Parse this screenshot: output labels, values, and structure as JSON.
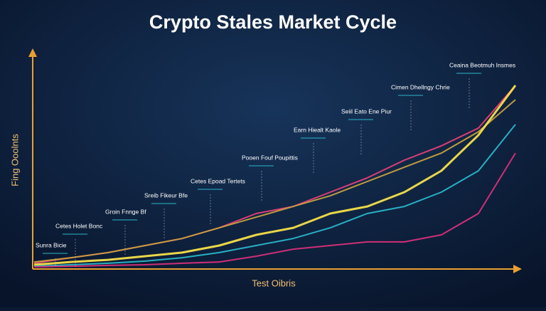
{
  "chart_data": {
    "type": "line",
    "title": "Crypto Stales Market Cycle",
    "x_label": "Test Oibris",
    "y_label": "Fing Ooolnts",
    "x": [
      0,
      1,
      2,
      3,
      4,
      5,
      6,
      7,
      8,
      9,
      10,
      11,
      12,
      13
    ],
    "xlim": [
      0,
      13
    ],
    "ylim": [
      0,
      100
    ],
    "series": [
      {
        "color": "#e8407a",
        "values": [
          1.7,
          4.3,
          6.7,
          10,
          13.3,
          18.3,
          25,
          28.3,
          35,
          41.7,
          50,
          56.7,
          65,
          85
        ]
      },
      {
        "color": "#c9a040",
        "values": [
          2.3,
          4.3,
          6.7,
          10,
          13.3,
          18.3,
          23.3,
          28.3,
          33.3,
          40,
          46.7,
          53.3,
          63.3,
          78.3
        ]
      },
      {
        "color": "#f5e04a",
        "values": [
          1,
          2.3,
          3.3,
          5,
          6.7,
          10,
          15,
          18.3,
          25,
          28.3,
          35,
          45,
          61.7,
          85
        ]
      },
      {
        "color": "#2ab7ca",
        "values": [
          0.3,
          1,
          1.7,
          2.7,
          4.3,
          6.7,
          10,
          13.3,
          18.3,
          25,
          28.3,
          35,
          45,
          66.7
        ]
      },
      {
        "color": "#d9307a",
        "values": [
          0,
          0.3,
          0.7,
          1,
          1.7,
          2.3,
          5,
          8.3,
          10,
          11.7,
          11.7,
          15,
          25,
          53.3
        ]
      }
    ],
    "annotations": [
      "Sunra Bicie",
      "Cetes Holet Bonc",
      "Groin Fnnge Bf",
      "Sreib Fikeur Bfe",
      "Cetes Epoad Tertets",
      "Pooen Fouf Poupittis",
      "Earn Hiealt Kaole",
      "Seiil Eato Ene Piur",
      "Cimen Dhellngy Chrie",
      "Ceaina Beotmuh Insmes"
    ]
  }
}
